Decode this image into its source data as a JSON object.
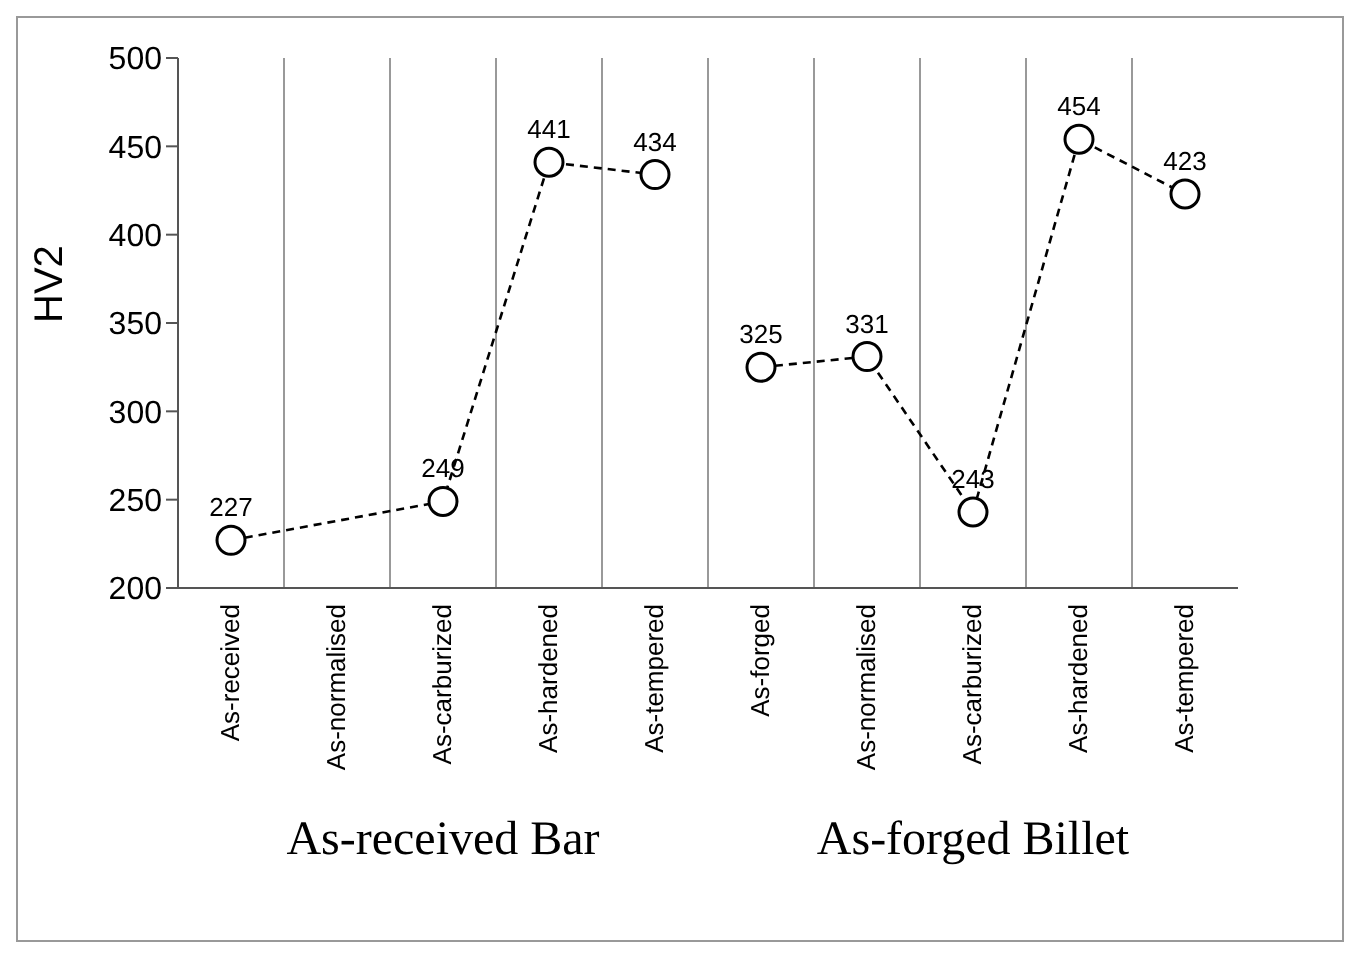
{
  "chart_data": {
    "type": "line",
    "ylabel": "HV2",
    "categories": [
      "As-received",
      "As-normalised",
      "As-carburized",
      "As-hardened",
      "As-tempered",
      "As-forged",
      "As-normalised",
      "As-carburized",
      "As-hardened",
      "As-tempered"
    ],
    "series": [
      {
        "color": "#000000",
        "values": [
          227,
          null,
          249,
          441,
          434,
          null,
          null,
          null,
          null,
          null
        ]
      },
      {
        "color": "#000000",
        "values": [
          null,
          null,
          null,
          null,
          null,
          325,
          331,
          243,
          454,
          423
        ]
      }
    ],
    "ylim": [
      200,
      500
    ],
    "yticks": [
      200,
      250,
      300,
      350,
      400,
      450,
      500
    ],
    "grid": "x",
    "legend": false,
    "marker": "circle",
    "line_style": "dashed",
    "data_labels": true,
    "annotations": [
      "As-received Bar",
      "As-forged Billet"
    ]
  }
}
